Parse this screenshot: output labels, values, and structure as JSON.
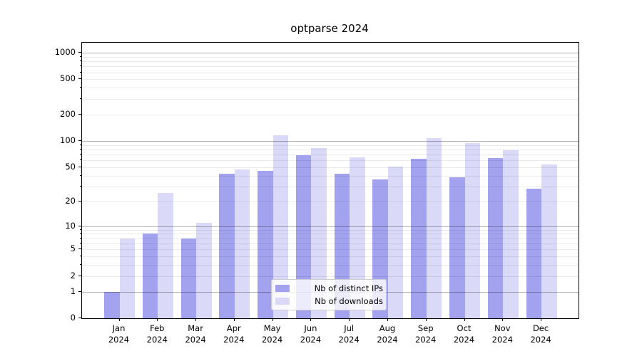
{
  "title": "optparse 2024",
  "chart_data": {
    "type": "bar",
    "title": "optparse 2024",
    "categories": [
      {
        "month": "Jan",
        "year": "2024"
      },
      {
        "month": "Feb",
        "year": "2024"
      },
      {
        "month": "Mar",
        "year": "2024"
      },
      {
        "month": "Apr",
        "year": "2024"
      },
      {
        "month": "May",
        "year": "2024"
      },
      {
        "month": "Jun",
        "year": "2024"
      },
      {
        "month": "Jul",
        "year": "2024"
      },
      {
        "month": "Aug",
        "year": "2024"
      },
      {
        "month": "Sep",
        "year": "2024"
      },
      {
        "month": "Oct",
        "year": "2024"
      },
      {
        "month": "Nov",
        "year": "2024"
      },
      {
        "month": "Dec",
        "year": "2024"
      }
    ],
    "series": [
      {
        "name": "Nb of distinct IPs",
        "color": "#a2a2ef",
        "values": [
          1,
          8,
          7,
          42,
          45,
          69,
          42,
          36,
          62,
          38,
          64,
          28
        ]
      },
      {
        "name": "Nb of downloads",
        "color": "#dadaf8",
        "values": [
          7,
          25,
          11,
          47,
          115,
          82,
          65,
          51,
          108,
          95,
          78,
          54
        ]
      }
    ],
    "y_axis": {
      "scale": "log1p",
      "tick_labels": [
        "0",
        "1",
        "2",
        "5",
        "10",
        "20",
        "50",
        "100",
        "200",
        "500",
        "1000"
      ],
      "ticks": [
        0,
        1,
        2,
        5,
        10,
        20,
        50,
        100,
        200,
        500,
        1000
      ],
      "major_gridlines": [
        1,
        10,
        100,
        1000
      ],
      "ylim": [
        0,
        1300
      ]
    },
    "xlabel": "",
    "ylabel": "",
    "grid": true,
    "legend_position": "lower center"
  },
  "colors": {
    "bar_distinct_ips": "#a2a2ef",
    "bar_downloads": "#dadaf8",
    "major_grid": "#b3b3b3",
    "minor_grid": "#ebebeb",
    "axis": "#000000",
    "background": "#ffffff"
  }
}
